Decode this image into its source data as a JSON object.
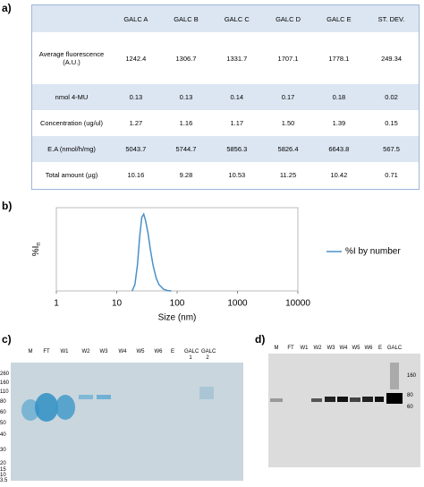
{
  "panel_labels": [
    "a)",
    "b)",
    "c)",
    "d)"
  ],
  "table": {
    "columns": [
      "GALC A",
      "GALC B",
      "GALC C",
      "GALC D",
      "GALC E",
      "ST. DEV."
    ],
    "rows": [
      {
        "label": "Average fluorescence (A.U.)",
        "cells": [
          "1242.4",
          "1306.7",
          "1331.7",
          "1707.1",
          "1778.1",
          "249.34"
        ]
      },
      {
        "label": "nmol 4-MU",
        "cells": [
          "0.13",
          "0.13",
          "0.14",
          "0.17",
          "0.18",
          "0.02"
        ]
      },
      {
        "label": "Concentration (ug/ul)",
        "cells": [
          "1.27",
          "1.16",
          "1.17",
          "1.50",
          "1.39",
          "0.15"
        ]
      },
      {
        "label": "E.A (nmol/h/mg)",
        "cells": [
          "5043.7",
          "5744.7",
          "5856.3",
          "5826.4",
          "6643.8",
          "567.5"
        ]
      },
      {
        "label": "Total amount (µg)",
        "cells": [
          "10.16",
          "9.28",
          "10.53",
          "11.25",
          "10.42",
          "0.71"
        ]
      }
    ]
  },
  "chart_data": {
    "type": "line",
    "x_label": "Size (nm)",
    "y_label": "%I",
    "y_label_sub": "n",
    "xscale": "log",
    "xlim": [
      1,
      10000
    ],
    "xticks": [
      1,
      10,
      100,
      1000,
      10000
    ],
    "ylim": [
      0,
      26
    ],
    "legend": "right",
    "series": [
      {
        "name": "%I by number",
        "color": "#4a90c8",
        "x": [
          18,
          20,
          22,
          24,
          26,
          28,
          30,
          33,
          36,
          40,
          45,
          50,
          60,
          70,
          80
        ],
        "values": [
          0,
          2,
          8,
          17,
          23,
          24,
          22,
          18,
          13,
          8,
          4,
          2,
          0.5,
          0.1,
          0
        ]
      }
    ]
  },
  "gel_c": {
    "lanes": [
      "M",
      "FT",
      "W1",
      "W2",
      "W3",
      "W4",
      "W5",
      "W6",
      "E",
      "GALC 1",
      "GALC 2"
    ],
    "markers": [
      "260",
      "160",
      "110",
      "80",
      "60",
      "50",
      "40",
      "30",
      "20",
      "15",
      "10",
      "3.5"
    ]
  },
  "gel_d": {
    "lanes": [
      "M",
      "FT",
      "W1",
      "W2",
      "W3",
      "W4",
      "W5",
      "W6",
      "E",
      "GALC"
    ],
    "markers": [
      "160",
      "80",
      "60"
    ]
  }
}
